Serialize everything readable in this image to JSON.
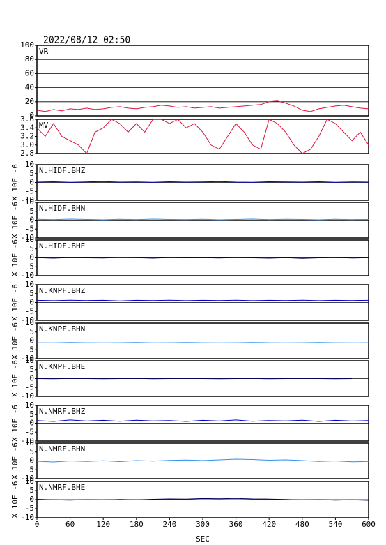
{
  "title": "2022/08/12 02:50",
  "chart_data": [
    {
      "type": "line",
      "label": "VR",
      "color": "#dc143c",
      "grid": true,
      "xlim": [
        0,
        600
      ],
      "ylim": [
        0,
        100
      ],
      "yticks": [
        0,
        20,
        40,
        60,
        80,
        100
      ],
      "x": [
        0,
        15,
        30,
        45,
        60,
        75,
        90,
        105,
        120,
        135,
        150,
        165,
        180,
        195,
        210,
        225,
        240,
        255,
        270,
        285,
        300,
        315,
        330,
        345,
        360,
        375,
        390,
        405,
        420,
        435,
        450,
        465,
        480,
        495,
        510,
        525,
        540,
        555,
        570,
        585,
        600
      ],
      "values": [
        8,
        6,
        9,
        7,
        10,
        9,
        11,
        9,
        10,
        12,
        13,
        11,
        10,
        12,
        13,
        15,
        14,
        12,
        13,
        11,
        12,
        13,
        11,
        12,
        13,
        14,
        15,
        16,
        20,
        21,
        18,
        14,
        8,
        6,
        10,
        12,
        14,
        15,
        13,
        11,
        10
      ]
    },
    {
      "type": "line",
      "label": "MV",
      "color": "#dc143c",
      "grid": false,
      "xlim": [
        0,
        600
      ],
      "ylim": [
        2.8,
        3.6
      ],
      "yticks": [
        2.8,
        {
          "value": 3.0,
          "label": "3.0"
        },
        3.2,
        3.4,
        3.6
      ],
      "x": [
        0,
        15,
        30,
        45,
        60,
        75,
        90,
        105,
        120,
        135,
        150,
        165,
        180,
        195,
        210,
        225,
        240,
        255,
        270,
        285,
        300,
        315,
        330,
        345,
        360,
        375,
        390,
        405,
        420,
        435,
        450,
        465,
        480,
        495,
        510,
        525,
        540,
        555,
        570,
        585,
        600
      ],
      "values": [
        3.4,
        3.2,
        3.5,
        3.2,
        3.1,
        3.0,
        2.8,
        3.3,
        3.4,
        3.6,
        3.5,
        3.3,
        3.5,
        3.3,
        3.6,
        3.6,
        3.5,
        3.6,
        3.4,
        3.5,
        3.3,
        3.0,
        2.9,
        3.2,
        3.5,
        3.3,
        3.0,
        2.9,
        3.6,
        3.5,
        3.3,
        3.0,
        2.8,
        2.9,
        3.2,
        3.6,
        3.5,
        3.3,
        3.1,
        3.3,
        3.0
      ]
    },
    {
      "type": "line",
      "label": "N.HIDF.BHZ",
      "ylabel": "X 10E -6",
      "color": "#0000c8",
      "xlim": [
        0,
        600
      ],
      "ylim": [
        -10,
        10
      ],
      "yticks": [
        -10,
        -5,
        0,
        5,
        10
      ],
      "x": [
        0,
        30,
        60,
        90,
        120,
        150,
        180,
        210,
        240,
        270,
        300,
        330,
        360,
        390,
        420,
        450,
        480,
        510,
        540,
        570,
        600
      ],
      "values": [
        0.2,
        0.4,
        0.1,
        0.3,
        0.5,
        0.2,
        0.3,
        0.1,
        0.4,
        0.2,
        0.3,
        0.5,
        0.2,
        0.1,
        0.4,
        0.3,
        0.2,
        0.4,
        0.1,
        0.3,
        0.2
      ]
    },
    {
      "type": "line",
      "label": "N.HIDF.BHN",
      "ylabel": "X 10E -6",
      "color": "#2f8fef",
      "xlim": [
        0,
        600
      ],
      "ylim": [
        -10,
        10
      ],
      "yticks": [
        -10,
        -5,
        0,
        5,
        10
      ],
      "x": [
        0,
        30,
        60,
        90,
        120,
        150,
        180,
        210,
        240,
        270,
        300,
        330,
        360,
        390,
        420,
        450,
        480,
        510,
        540,
        570,
        600
      ],
      "values": [
        0.5,
        0.3,
        0.6,
        0.4,
        0.2,
        0.5,
        0.3,
        0.6,
        0.4,
        0.3,
        0.5,
        0.2,
        0.4,
        0.6,
        0.3,
        0.5,
        0.4,
        0.2,
        0.5,
        0.3,
        0.4
      ]
    },
    {
      "type": "line",
      "label": "N.HIDF.BHE",
      "ylabel": "X 10E -6",
      "color": "#00005a",
      "xlim": [
        0,
        600
      ],
      "ylim": [
        -10,
        10
      ],
      "yticks": [
        -10,
        -5,
        0,
        5,
        10
      ],
      "x": [
        0,
        30,
        60,
        90,
        120,
        150,
        180,
        210,
        240,
        270,
        300,
        330,
        360,
        390,
        420,
        450,
        480,
        510,
        540,
        570,
        600
      ],
      "values": [
        0.1,
        -0.2,
        0.2,
        0.0,
        -0.1,
        0.3,
        0.1,
        -0.2,
        0.2,
        0.0,
        0.1,
        -0.1,
        0.2,
        0.0,
        -0.2,
        0.1,
        -0.3,
        0.0,
        0.2,
        -0.1,
        0.1
      ]
    },
    {
      "type": "line",
      "label": "N.KNPF.BHZ",
      "ylabel": "X 10E -6",
      "color": "#0000c8",
      "xlim": [
        0,
        600
      ],
      "ylim": [
        -10,
        10
      ],
      "yticks": [
        -10,
        -5,
        0,
        5,
        10
      ],
      "x": [
        0,
        30,
        60,
        90,
        120,
        150,
        180,
        210,
        240,
        270,
        300,
        330,
        360,
        390,
        420,
        450,
        480,
        510,
        540,
        570,
        600
      ],
      "values": [
        1.2,
        1.0,
        1.3,
        1.1,
        1.2,
        0.9,
        1.2,
        1.1,
        1.3,
        1.0,
        1.2,
        1.1,
        1.3,
        1.0,
        1.2,
        1.1,
        1.3,
        1.0,
        1.2,
        1.1,
        1.2
      ]
    },
    {
      "type": "line",
      "label": "N.KNPF.BHN",
      "ylabel": "X 10E -6",
      "color": "#2f8fef",
      "xlim": [
        0,
        600
      ],
      "ylim": [
        -10,
        10
      ],
      "yticks": [
        -10,
        -5,
        0,
        5,
        10
      ],
      "x": [
        0,
        30,
        60,
        90,
        120,
        150,
        180,
        210,
        240,
        270,
        300,
        330,
        360,
        390,
        420,
        450,
        480,
        510,
        540,
        570,
        600
      ],
      "values": [
        -1.0,
        -1.1,
        -0.9,
        -1.0,
        -1.1,
        -1.0,
        -0.9,
        -1.1,
        -1.0,
        -0.9,
        -1.0,
        -1.1,
        -1.0,
        -0.9,
        -1.0,
        -1.1,
        -1.0,
        -0.9,
        -1.0,
        -1.1,
        -1.0
      ]
    },
    {
      "type": "line",
      "label": "N.KNPF.BHE",
      "ylabel": "X 10E -6",
      "color": "#00005a",
      "xlim": [
        0,
        600
      ],
      "ylim": [
        -10,
        10
      ],
      "yticks": [
        -10,
        -5,
        0,
        5,
        10
      ],
      "x": [
        0,
        30,
        60,
        90,
        120,
        150,
        180,
        210,
        240,
        270,
        300,
        330,
        360,
        390,
        420,
        450,
        480,
        510,
        540,
        570
      ],
      "values": [
        0.0,
        -0.1,
        0.1,
        0.0,
        -0.1,
        0.0,
        0.1,
        -0.1,
        0.0,
        0.1,
        0.0,
        -0.1,
        0.0,
        0.1,
        -0.1,
        0.0,
        0.1,
        0.0,
        -0.1,
        0.0
      ]
    },
    {
      "type": "line",
      "label": "N.NMRF.BHZ",
      "ylabel": "X 10E -6",
      "color": "#0000c8",
      "xlim": [
        0,
        600
      ],
      "ylim": [
        -10,
        10
      ],
      "yticks": [
        -10,
        -5,
        0,
        5,
        10
      ],
      "x": [
        0,
        30,
        60,
        90,
        120,
        150,
        180,
        210,
        240,
        270,
        300,
        330,
        360,
        390,
        420,
        450,
        480,
        510,
        540,
        570,
        600
      ],
      "values": [
        1.5,
        1.0,
        1.8,
        1.2,
        1.6,
        1.1,
        1.7,
        1.3,
        1.5,
        1.0,
        1.6,
        1.2,
        1.8,
        1.1,
        1.5,
        1.3,
        1.7,
        1.0,
        1.6,
        1.2,
        1.5
      ]
    },
    {
      "type": "line",
      "label": "N.NMRF.BHN",
      "ylabel": "X 10E -6",
      "color": "#2f8fef",
      "xlim": [
        0,
        600
      ],
      "ylim": [
        -10,
        10
      ],
      "yticks": [
        -10,
        -5,
        0,
        5,
        10
      ],
      "x": [
        0,
        30,
        60,
        90,
        120,
        150,
        180,
        210,
        240,
        270,
        300,
        330,
        360,
        390,
        420,
        450,
        480,
        510,
        540,
        570,
        600
      ],
      "values": [
        -0.2,
        -0.6,
        0.0,
        -0.3,
        0.1,
        -0.4,
        0.2,
        -0.1,
        0.3,
        0.5,
        0.2,
        0.6,
        1.0,
        0.8,
        0.4,
        0.6,
        0.2,
        -0.3,
        0.0,
        -0.5,
        -0.3
      ]
    },
    {
      "type": "line",
      "label": "N.NMRF.BHE",
      "ylabel": "X 10E -6",
      "color": "#00005a",
      "xlim": [
        0,
        600
      ],
      "ylim": [
        -10,
        10
      ],
      "yticks": [
        -10,
        -5,
        0,
        5,
        10
      ],
      "xlabel": "SEC",
      "xticks": [
        0,
        60,
        120,
        180,
        240,
        300,
        360,
        420,
        480,
        540,
        600
      ],
      "x": [
        0,
        30,
        60,
        90,
        120,
        150,
        180,
        210,
        240,
        270,
        300,
        330,
        360,
        390,
        420,
        450,
        480,
        510,
        540,
        570,
        600
      ],
      "values": [
        0.2,
        -0.1,
        -0.3,
        0.0,
        -0.2,
        0.1,
        -0.1,
        0.2,
        0.4,
        0.3,
        0.6,
        0.5,
        0.7,
        0.4,
        0.3,
        0.1,
        -0.2,
        0.0,
        -0.3,
        -0.1,
        -0.4
      ]
    }
  ]
}
